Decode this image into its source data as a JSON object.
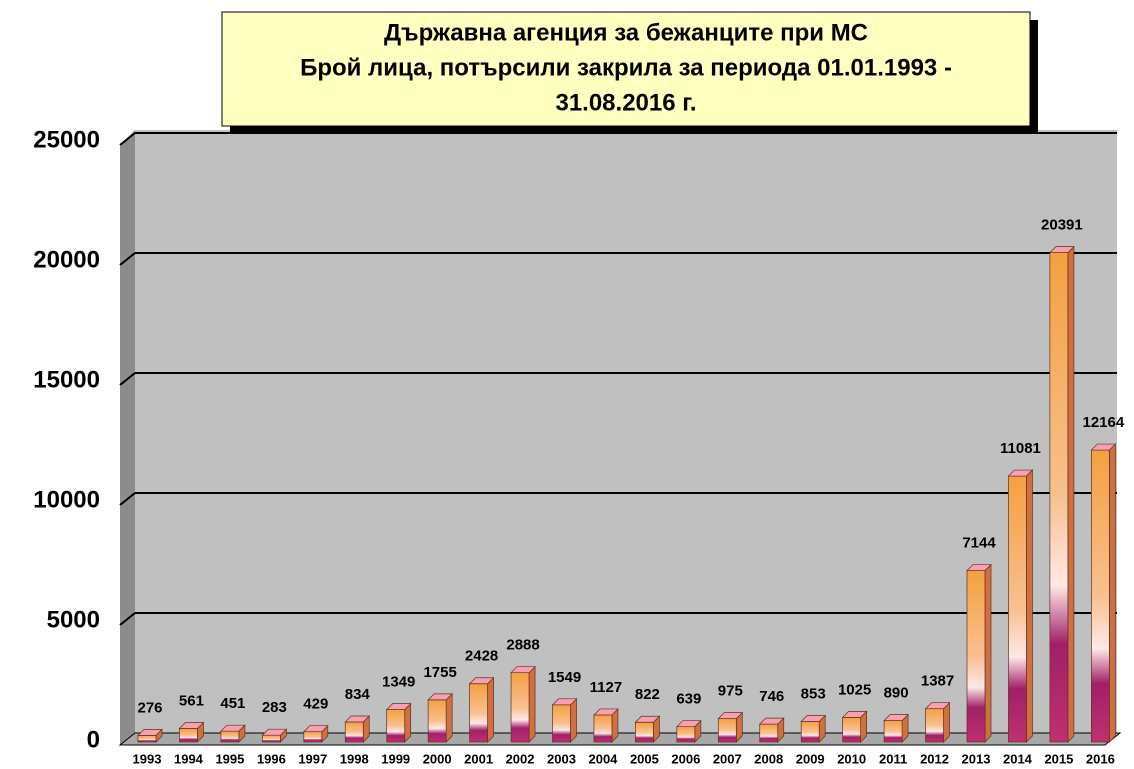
{
  "chart_data": {
    "type": "bar",
    "title": [
      "Държавна агенция за бежанците при МС",
      "Брой лица, потърсили закрила за периода 01.01.1993 -",
      "31.08.2016 г."
    ],
    "categories": [
      "1993",
      "1994",
      "1995",
      "1996",
      "1997",
      "1998",
      "1999",
      "2000",
      "2001",
      "2002",
      "2003",
      "2004",
      "2005",
      "2006",
      "2007",
      "2008",
      "2009",
      "2010",
      "2011",
      "2012",
      "2013",
      "2014",
      "2015",
      "2016"
    ],
    "values": [
      276,
      561,
      451,
      283,
      429,
      834,
      1349,
      1755,
      2428,
      2888,
      1549,
      1127,
      822,
      639,
      975,
      746,
      853,
      1025,
      890,
      1387,
      7144,
      11081,
      20391,
      12164
    ],
    "ylim": [
      0,
      25000
    ],
    "yticks": [
      0,
      5000,
      10000,
      15000,
      20000,
      25000
    ],
    "grid": true
  }
}
